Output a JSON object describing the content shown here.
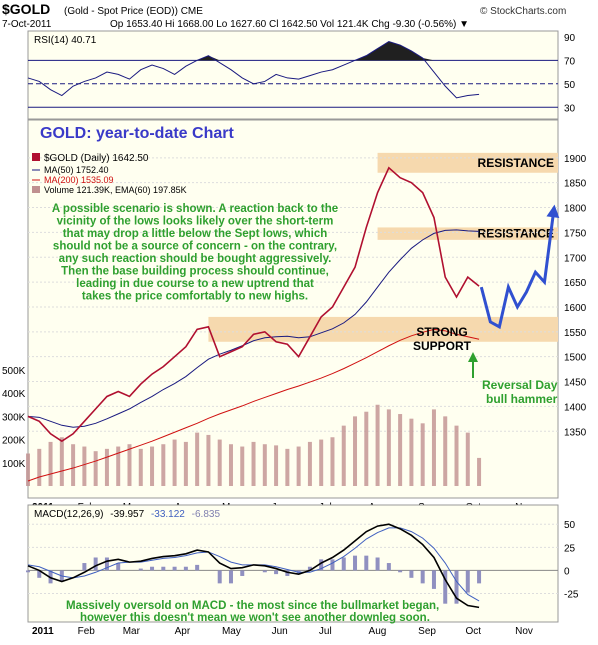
{
  "header": {
    "symbol": "$GOLD",
    "description": "(Gold - Spot Price (EOD)) CME",
    "date": "7-Oct-2011",
    "quote": "Op 1653.40 Hi 1668.00 Lo 1627.60 Cl 1642.50 Vol 121.4K Chg -9.30 (-0.56%) ▼",
    "brand": "© StockCharts.com"
  },
  "chart_data": [
    {
      "type": "line",
      "panel": "rsi",
      "legend": "RSI(14) 40.71",
      "ylim": [
        20,
        95
      ],
      "yticks": [
        90,
        70,
        50,
        30
      ],
      "overbought": 70,
      "oversold": 30,
      "midline": 50,
      "x": [
        0,
        5,
        10,
        15,
        20,
        25,
        30,
        35,
        40,
        45,
        50,
        55,
        60,
        65,
        70,
        75,
        80,
        85,
        90,
        95,
        100,
        105,
        110,
        115,
        120,
        125,
        130,
        135,
        140,
        145,
        150,
        155,
        160,
        165,
        170,
        175,
        180,
        185,
        190,
        195,
        200
      ],
      "y": [
        55,
        52,
        45,
        40,
        48,
        52,
        55,
        60,
        58,
        54,
        62,
        66,
        63,
        58,
        65,
        70,
        74,
        68,
        62,
        55,
        50,
        52,
        58,
        55,
        54,
        57,
        60,
        62,
        66,
        70,
        74,
        80,
        86,
        83,
        78,
        72,
        60,
        48,
        38,
        40,
        41
      ],
      "xlim": [
        0,
        235
      ]
    },
    {
      "type": "line",
      "panel": "price",
      "title": "GOLD: year-to-date Chart",
      "legend": [
        "$GOLD (Daily) 1642.50",
        "MA(50) 1752.40",
        "MA(200) 1535.09",
        "Volume 121.39K, EMA(60) 197.85K"
      ],
      "x": [
        0,
        5,
        10,
        15,
        20,
        25,
        30,
        35,
        40,
        45,
        50,
        55,
        60,
        65,
        70,
        75,
        80,
        85,
        90,
        95,
        100,
        105,
        110,
        115,
        120,
        125,
        130,
        135,
        140,
        145,
        150,
        155,
        160,
        165,
        170,
        175,
        180,
        185,
        190,
        195,
        200
      ],
      "price": [
        1380,
        1370,
        1345,
        1330,
        1345,
        1370,
        1395,
        1420,
        1430,
        1420,
        1445,
        1465,
        1480,
        1500,
        1520,
        1555,
        1560,
        1500,
        1510,
        1520,
        1545,
        1550,
        1530,
        1525,
        1500,
        1540,
        1580,
        1600,
        1640,
        1680,
        1760,
        1830,
        1880,
        1860,
        1850,
        1830,
        1780,
        1660,
        1620,
        1660,
        1642
      ],
      "ma50": [
        1380,
        1378,
        1370,
        1362,
        1358,
        1360,
        1366,
        1375,
        1385,
        1395,
        1408,
        1420,
        1434,
        1446,
        1460,
        1478,
        1495,
        1505,
        1513,
        1522,
        1532,
        1538,
        1540,
        1541,
        1538,
        1540,
        1548,
        1556,
        1568,
        1585,
        1610,
        1640,
        1670,
        1695,
        1718,
        1735,
        1748,
        1754,
        1755,
        1753,
        1752
      ],
      "ma200": [
        1250,
        1258,
        1264,
        1270,
        1276,
        1283,
        1290,
        1298,
        1306,
        1314,
        1322,
        1330,
        1339,
        1348,
        1357,
        1366,
        1376,
        1385,
        1393,
        1401,
        1410,
        1418,
        1426,
        1434,
        1441,
        1449,
        1457,
        1466,
        1476,
        1487,
        1498,
        1510,
        1522,
        1533,
        1542,
        1549,
        1555,
        1552,
        1545,
        1540,
        1535
      ],
      "volume": [
        140,
        160,
        190,
        210,
        180,
        170,
        150,
        160,
        170,
        180,
        160,
        170,
        180,
        200,
        190,
        230,
        220,
        200,
        180,
        170,
        190,
        180,
        175,
        160,
        170,
        190,
        200,
        210,
        260,
        300,
        320,
        350,
        330,
        310,
        290,
        270,
        330,
        300,
        260,
        230,
        121
      ],
      "ylim": [
        1260,
        1960
      ],
      "yticks": [
        1900,
        1850,
        1800,
        1750,
        1700,
        1650,
        1600,
        1550,
        1500,
        1450,
        1400,
        1350
      ],
      "vol_ticks": [
        "500K",
        "400K",
        "300K",
        "200K",
        "100K"
      ],
      "xlim": [
        0,
        235
      ],
      "months": [
        [
          "2011",
          0
        ],
        [
          "Feb",
          22
        ],
        [
          "Mar",
          42
        ],
        [
          "Apr",
          65
        ],
        [
          "May",
          86
        ],
        [
          "Jun",
          108
        ],
        [
          "Jul",
          129
        ],
        [
          "Aug",
          151
        ],
        [
          "Sep",
          173
        ],
        [
          "Oct",
          194
        ],
        [
          "Nov",
          216
        ]
      ],
      "zones": [
        {
          "label": "RESISTANCE",
          "low": 1870,
          "high": 1910,
          "from": 155
        },
        {
          "label": "RESISTANCE",
          "low": 1735,
          "high": 1760,
          "from": 155
        },
        {
          "label": "",
          "low": 1530,
          "high": 1580,
          "from": 80
        }
      ],
      "annotations": {
        "scenario": [
          "A possible scenario is shown. A reaction back to the",
          "vicinity of the lows looks likely over the short-term",
          "that may drop a little below the Sept lows, which",
          "should not be a source of concern - on the contrary,",
          "any such reaction should be bought aggressively.",
          "Then the base building process should continue,",
          "leading in due course to a new uptrend that",
          "takes the price comfortably to new highs."
        ],
        "support": [
          "STRONG",
          "SUPPORT"
        ],
        "reversal": [
          "Reversal Day",
          "bull hammer"
        ]
      },
      "projection_x": [
        201,
        205,
        209,
        213,
        217,
        221,
        225,
        229,
        233
      ],
      "projection_y": [
        1640,
        1570,
        1560,
        1640,
        1600,
        1630,
        1670,
        1650,
        1790
      ]
    },
    {
      "type": "line",
      "panel": "macd",
      "legend": [
        "MACD(12,26,9)",
        "-39.957",
        "-33.122",
        "-6.835"
      ],
      "ylim": [
        -45,
        60
      ],
      "yticks": [
        50,
        25,
        0,
        -25
      ],
      "x": [
        0,
        5,
        10,
        15,
        20,
        25,
        30,
        35,
        40,
        45,
        50,
        55,
        60,
        65,
        70,
        75,
        80,
        85,
        90,
        95,
        100,
        105,
        110,
        115,
        120,
        125,
        130,
        135,
        140,
        145,
        150,
        155,
        160,
        165,
        170,
        175,
        180,
        185,
        190,
        195,
        200
      ],
      "macd": [
        5,
        0,
        -8,
        -12,
        -8,
        -2,
        5,
        10,
        12,
        9,
        10,
        13,
        15,
        16,
        18,
        22,
        20,
        8,
        2,
        3,
        6,
        5,
        2,
        -2,
        -4,
        0,
        8,
        14,
        22,
        32,
        42,
        48,
        50,
        45,
        38,
        28,
        14,
        -10,
        -30,
        -38,
        -40
      ],
      "signal": [
        6,
        4,
        -1,
        -6,
        -8,
        -6,
        -2,
        3,
        8,
        9,
        9,
        11,
        13,
        14,
        16,
        19,
        20,
        15,
        9,
        6,
        6,
        6,
        4,
        1,
        -2,
        -2,
        2,
        8,
        15,
        24,
        34,
        41,
        46,
        46,
        42,
        35,
        24,
        8,
        -12,
        -26,
        -33
      ],
      "note": [
        "Massively oversold on MACD - the most since the bullmarket began,",
        "however this doesn't mean we won't see another downleg soon."
      ],
      "xlim": [
        0,
        235
      ]
    }
  ],
  "colors": {
    "price": "#b01030",
    "ma50": "#1a1a80",
    "ma200": "#d01010",
    "volume": "#c09090",
    "zone": "#f6d9ae",
    "scenario_text": "#2fa02f",
    "title": "#3a3ac8",
    "projection": "#3050d0",
    "panel_bg": "#fffff0",
    "rsi_fill": "#202020"
  }
}
